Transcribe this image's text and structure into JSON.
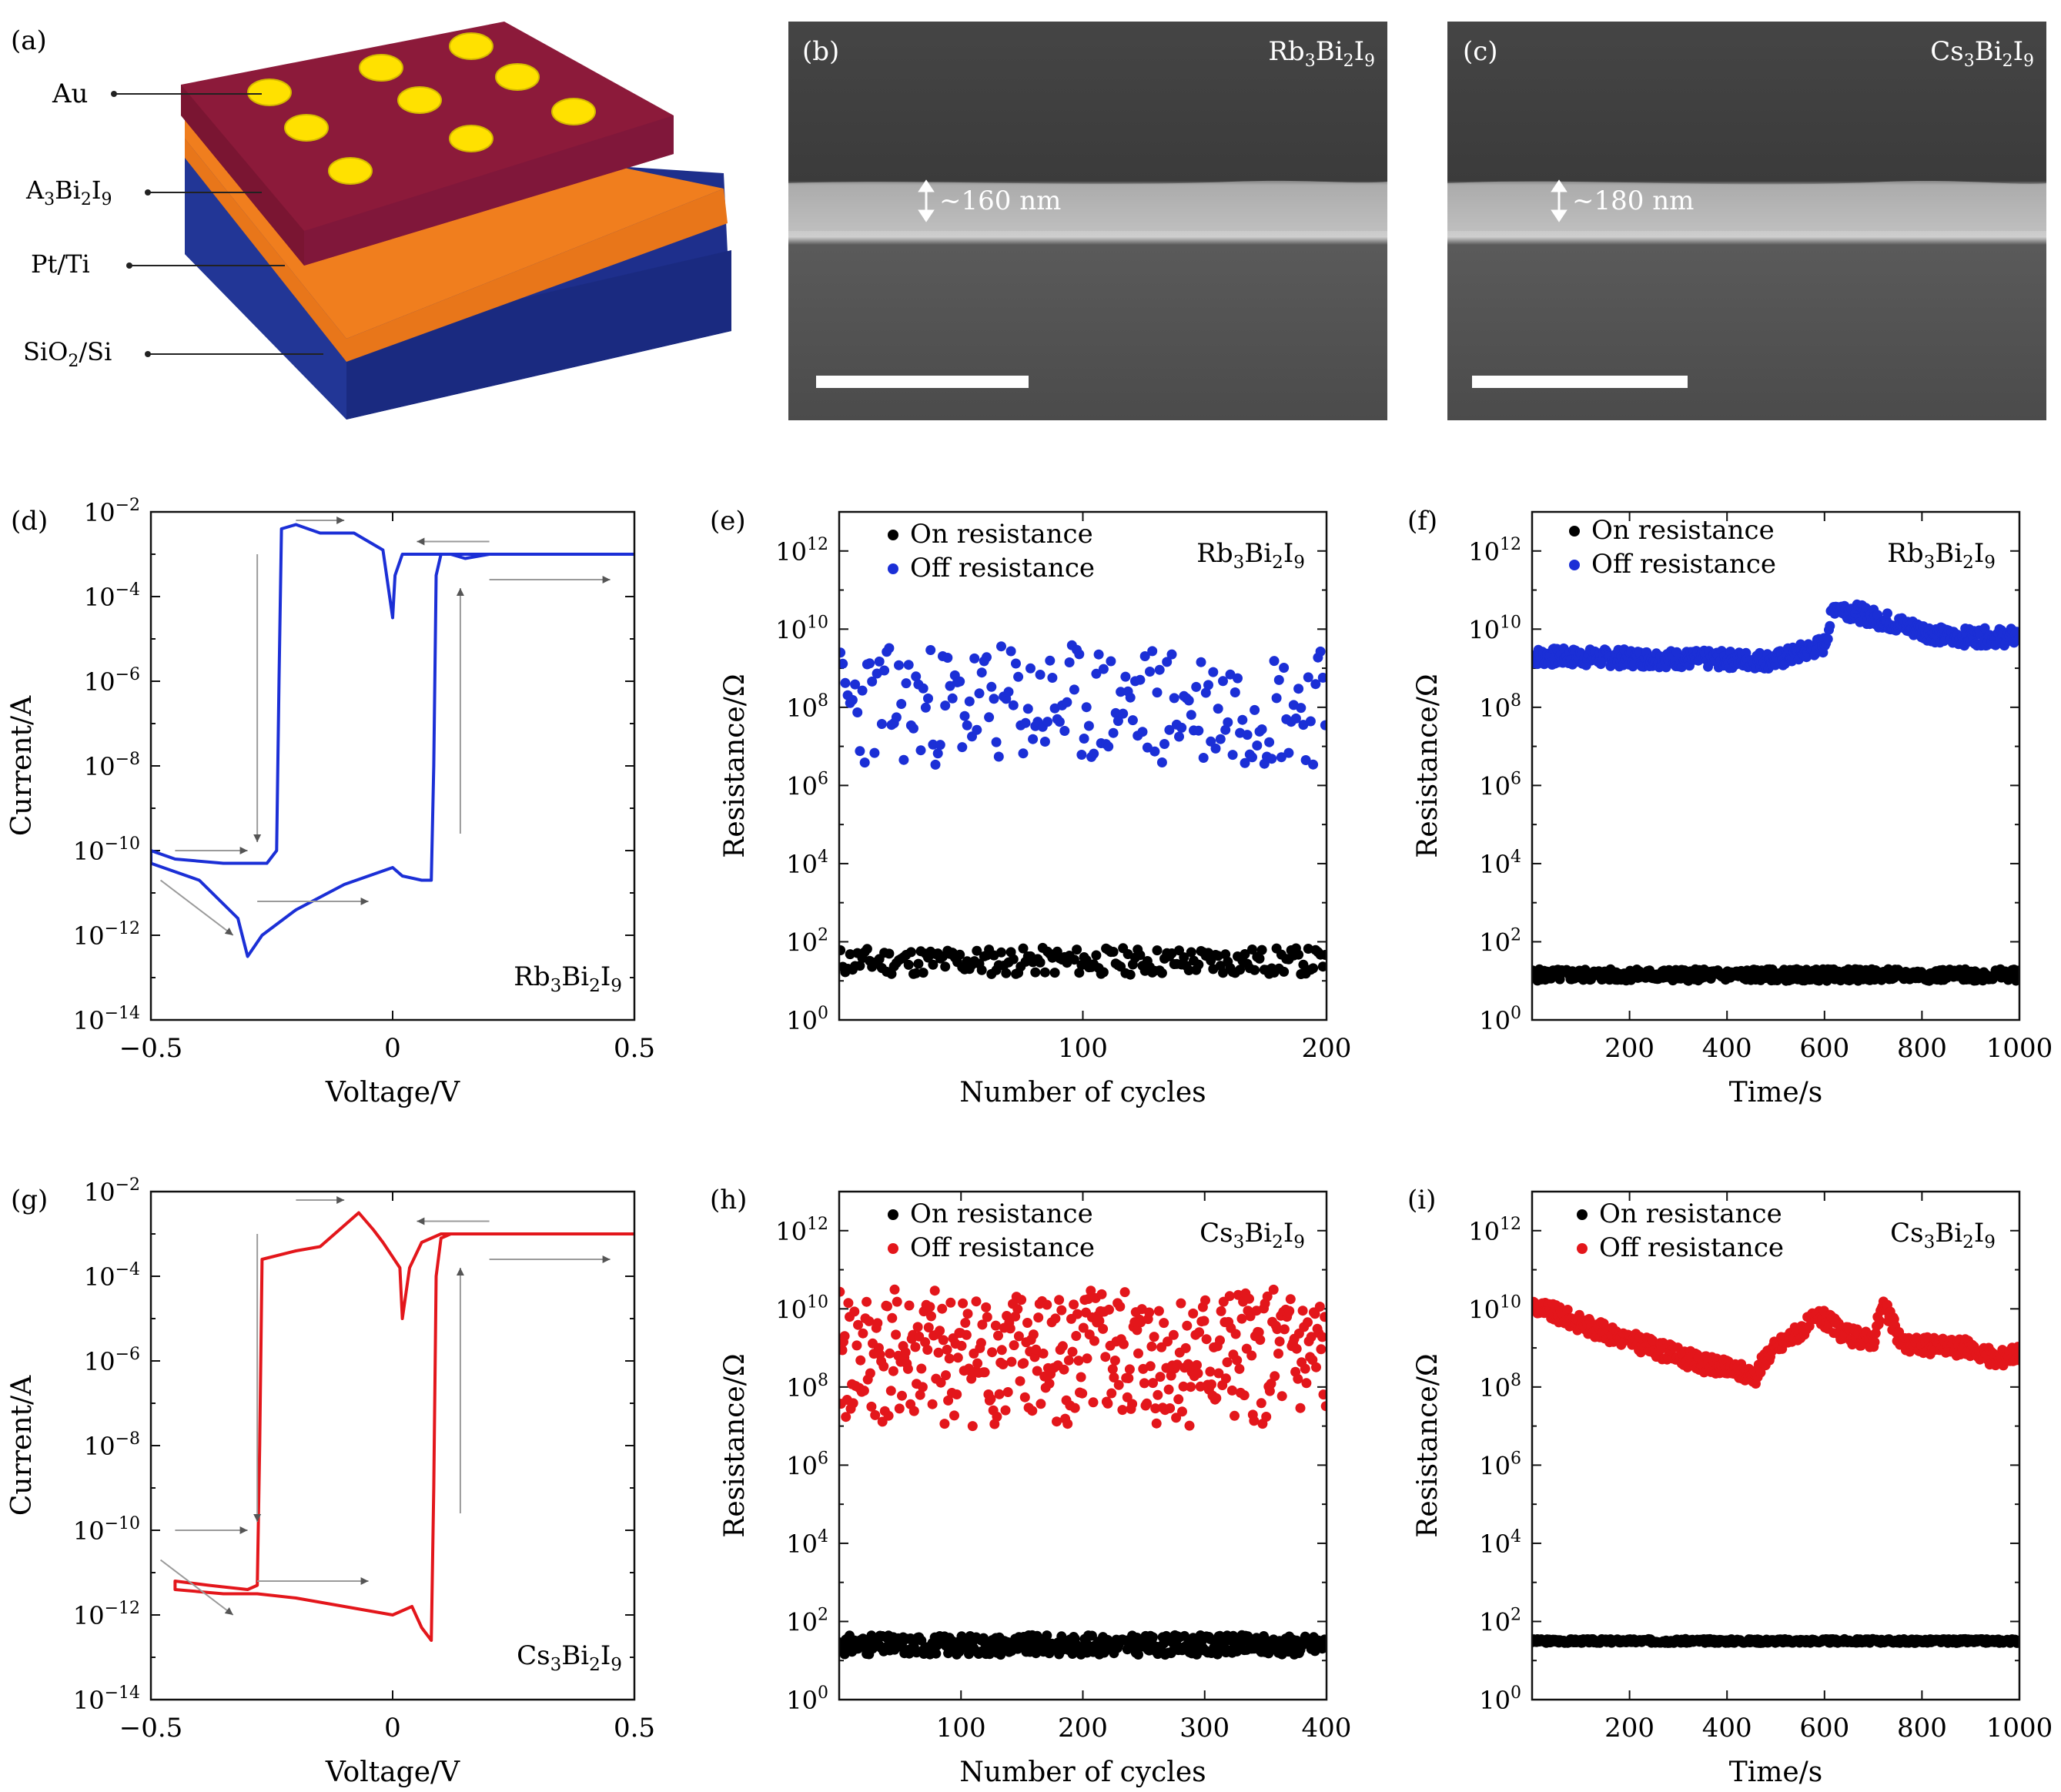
{
  "panel_a": {
    "letter": "(a)",
    "labels": {
      "au": "Au",
      "film": "A3Bi2I9",
      "electrode": "Pt/Ti",
      "substrate": "SiO2/Si"
    },
    "colors": {
      "au": "#ffe100",
      "film": "#8c1a3a",
      "electrode": "#f07e1e",
      "substrate": "#1e2f8c"
    }
  },
  "panel_b": {
    "letter": "(b)",
    "material": "Rb3Bi2I9",
    "thickness": "~160 nm"
  },
  "panel_c": {
    "letter": "(c)",
    "material": "Cs3Bi2I9",
    "thickness": "~180 nm"
  },
  "chart_data": [
    {
      "id": "d",
      "letter": "(d)",
      "type": "line",
      "xlabel": "Voltage/V",
      "ylabel": "Current/A",
      "xlim": [
        -0.5,
        0.5
      ],
      "ylim_exp": [
        -14,
        -2
      ],
      "xticks": [
        "-0.5",
        "0",
        "0.5"
      ],
      "xtick_values": [
        -0.5,
        0,
        0.5
      ],
      "yticks_exp": [
        -2,
        -4,
        -6,
        -8,
        -10,
        -12,
        -14
      ],
      "material": "Rb3Bi2I9",
      "color": "#1b2fd6",
      "series": [
        {
          "name": "I-V sweep",
          "points": [
            [
              0.5,
              -3
            ],
            [
              0.35,
              -3
            ],
            [
              0.2,
              -3
            ],
            [
              0.15,
              -3.1
            ],
            [
              0.12,
              -3.0
            ],
            [
              0.1,
              -3
            ],
            [
              0.09,
              -3.5
            ],
            [
              0.085,
              -8
            ],
            [
              0.08,
              -10.7
            ],
            [
              0.06,
              -10.7
            ],
            [
              0.02,
              -10.6
            ],
            [
              0.0,
              -10.4
            ],
            [
              -0.1,
              -10.8
            ],
            [
              -0.2,
              -11.4
            ],
            [
              -0.27,
              -12.0
            ],
            [
              -0.3,
              -12.5
            ],
            [
              -0.32,
              -11.6
            ],
            [
              -0.4,
              -10.7
            ],
            [
              -0.5,
              -10.3
            ],
            [
              -0.5,
              -10.0
            ],
            [
              -0.45,
              -10.2
            ],
            [
              -0.35,
              -10.3
            ],
            [
              -0.26,
              -10.3
            ],
            [
              -0.24,
              -10.0
            ],
            [
              -0.235,
              -6
            ],
            [
              -0.23,
              -2.4
            ],
            [
              -0.2,
              -2.3
            ],
            [
              -0.15,
              -2.5
            ],
            [
              -0.08,
              -2.5
            ],
            [
              -0.05,
              -2.7
            ],
            [
              -0.02,
              -2.9
            ],
            [
              0.0,
              -4.5
            ],
            [
              0.005,
              -3.5
            ],
            [
              0.02,
              -3.0
            ],
            [
              0.05,
              -3.0
            ],
            [
              0.1,
              -3.0
            ],
            [
              0.2,
              -3
            ],
            [
              0.5,
              -3
            ]
          ]
        }
      ]
    },
    {
      "id": "e",
      "letter": "(e)",
      "type": "scatter",
      "xlabel": "Number of cycles",
      "ylabel": "Resistance/Ω",
      "xlim": [
        0,
        200
      ],
      "ylim_exp": [
        0,
        13
      ],
      "xticks": [
        "100",
        "200"
      ],
      "xtick_values": [
        100,
        200
      ],
      "yticks_exp": [
        0,
        2,
        4,
        6,
        8,
        10,
        12
      ],
      "material": "Rb3Bi2I9",
      "series": [
        {
          "name": "On resistance",
          "color": "#000000",
          "n": 200,
          "base_exp": 1.5,
          "spread": 0.35,
          "seed": 11
        },
        {
          "name": "Off resistance",
          "color": "#1b2fd6",
          "n": 200,
          "base_exp": 6.5,
          "spread": 3.1,
          "seed": 23
        }
      ]
    },
    {
      "id": "f",
      "letter": "(f)",
      "type": "scatter",
      "xlabel": "Time/s",
      "ylabel": "Resistance/Ω",
      "xlim": [
        0,
        1000
      ],
      "ylim_exp": [
        0,
        13
      ],
      "xticks": [
        "200",
        "400",
        "600",
        "800",
        "1000"
      ],
      "xtick_values": [
        200,
        400,
        600,
        800,
        1000
      ],
      "yticks_exp": [
        0,
        2,
        4,
        6,
        8,
        10,
        12
      ],
      "material": "Rb3Bi2I9",
      "series": [
        {
          "name": "On resistance",
          "color": "#000000",
          "n": 500,
          "base_exp": 1.15,
          "spread": 0.15,
          "seed": 5
        },
        {
          "name": "Off resistance",
          "color": "#1b2fd6",
          "n": 500,
          "base_exp": 9.1,
          "spread": 0.45,
          "seed": 7,
          "trend": [
            [
              0,
              9.3
            ],
            [
              500,
              9.2
            ],
            [
              600,
              9.6
            ],
            [
              620,
              10.6
            ],
            [
              700,
              10.3
            ],
            [
              850,
              9.8
            ],
            [
              1000,
              9.8
            ]
          ]
        }
      ]
    },
    {
      "id": "g",
      "letter": "(g)",
      "type": "line",
      "xlabel": "Voltage/V",
      "ylabel": "Current/A",
      "xlim": [
        -0.5,
        0.5
      ],
      "ylim_exp": [
        -14,
        -2
      ],
      "xticks": [
        "-0.5",
        "0",
        "0.5"
      ],
      "xtick_values": [
        -0.5,
        0,
        0.5
      ],
      "yticks_exp": [
        -2,
        -4,
        -6,
        -8,
        -10,
        -12,
        -14
      ],
      "material": "Cs3Bi2I9",
      "color": "#e3161b",
      "series": [
        {
          "name": "I-V sweep",
          "points": [
            [
              0.5,
              -3
            ],
            [
              0.3,
              -3
            ],
            [
              0.15,
              -3
            ],
            [
              0.12,
              -3
            ],
            [
              0.1,
              -3.1
            ],
            [
              0.09,
              -4
            ],
            [
              0.085,
              -9
            ],
            [
              0.08,
              -12.6
            ],
            [
              0.06,
              -12.3
            ],
            [
              0.04,
              -11.8
            ],
            [
              0.0,
              -12.0
            ],
            [
              -0.2,
              -11.6
            ],
            [
              -0.28,
              -11.5
            ],
            [
              -0.35,
              -11.5
            ],
            [
              -0.45,
              -11.4
            ],
            [
              -0.45,
              -11.2
            ],
            [
              -0.38,
              -11.3
            ],
            [
              -0.3,
              -11.4
            ],
            [
              -0.28,
              -11.3
            ],
            [
              -0.275,
              -8
            ],
            [
              -0.27,
              -3.6
            ],
            [
              -0.2,
              -3.4
            ],
            [
              -0.15,
              -3.3
            ],
            [
              -0.1,
              -2.8
            ],
            [
              -0.07,
              -2.5
            ],
            [
              -0.04,
              -2.9
            ],
            [
              -0.02,
              -3.2
            ],
            [
              0.015,
              -3.8
            ],
            [
              0.02,
              -5
            ],
            [
              0.035,
              -3.8
            ],
            [
              0.06,
              -3.2
            ],
            [
              0.1,
              -3.0
            ],
            [
              0.2,
              -3
            ],
            [
              0.5,
              -3
            ]
          ]
        }
      ]
    },
    {
      "id": "h",
      "letter": "(h)",
      "type": "scatter",
      "xlabel": "Number of cycles",
      "ylabel": "Resistance/Ω",
      "xlim": [
        0,
        400
      ],
      "ylim_exp": [
        0,
        13
      ],
      "xticks": [
        "100",
        "200",
        "300",
        "400"
      ],
      "xtick_values": [
        100,
        200,
        300,
        400
      ],
      "yticks_exp": [
        0,
        2,
        4,
        6,
        8,
        10,
        12
      ],
      "material": "Cs3Bi2I9",
      "series": [
        {
          "name": "On resistance",
          "color": "#000000",
          "n": 400,
          "base_exp": 1.4,
          "spread": 0.25,
          "seed": 31
        },
        {
          "name": "Off resistance",
          "color": "#e3161b",
          "n": 400,
          "base_exp": 7.0,
          "spread": 3.5,
          "seed": 41
        }
      ]
    },
    {
      "id": "i",
      "letter": "(i)",
      "type": "scatter",
      "xlabel": "Time/s",
      "ylabel": "Resistance/Ω",
      "xlim": [
        0,
        1000
      ],
      "ylim_exp": [
        0,
        13
      ],
      "xticks": [
        "200",
        "400",
        "600",
        "800",
        "1000"
      ],
      "xtick_values": [
        200,
        400,
        600,
        800,
        1000
      ],
      "yticks_exp": [
        0,
        2,
        4,
        6,
        8,
        10,
        12
      ],
      "material": "Cs3Bi2I9",
      "series": [
        {
          "name": "On resistance",
          "color": "#000000",
          "n": 500,
          "base_exp": 1.5,
          "spread": 0.05,
          "seed": 3
        },
        {
          "name": "Off resistance",
          "color": "#e3161b",
          "n": 500,
          "base_exp": 8.5,
          "spread": 0.45,
          "seed": 9,
          "trend": [
            [
              0,
              10.1
            ],
            [
              150,
              9.4
            ],
            [
              250,
              9.0
            ],
            [
              350,
              8.6
            ],
            [
              460,
              8.3
            ],
            [
              480,
              8.8
            ],
            [
              500,
              9.0
            ],
            [
              590,
              9.8
            ],
            [
              650,
              9.3
            ],
            [
              700,
              9.2
            ],
            [
              720,
              10.1
            ],
            [
              760,
              9.1
            ],
            [
              900,
              9.0
            ],
            [
              950,
              8.7
            ],
            [
              1000,
              8.9
            ]
          ]
        }
      ]
    }
  ]
}
